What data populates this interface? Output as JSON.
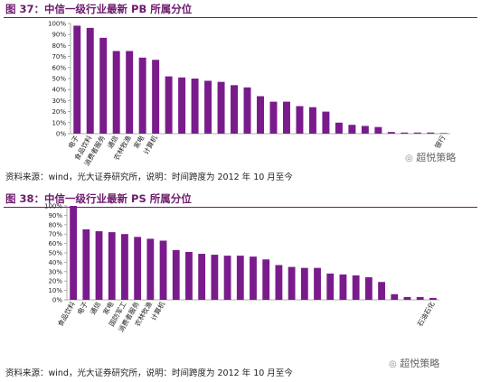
{
  "figures": [
    {
      "title": "图 37：中信一级行业最新 PB 所属分位",
      "source": "资料来源：wind，光大证券研究所，说明：时间跨度为 2012 年 10 月至今",
      "watermark": "超悦策略"
    },
    {
      "title": "图 38：中信一级行业最新 PS 所属分位",
      "source": "资料来源：wind，光大证券研究所，说明：时间跨度为 2012 年 10 月至今",
      "watermark": "超悦策略"
    }
  ],
  "colors": {
    "bar": "#7a1b8c",
    "accent": "#6e1b6e",
    "axis": "#999999"
  },
  "chart_data": [
    {
      "type": "bar",
      "title": "",
      "xlabel": "",
      "ylabel": "",
      "ylim": [
        0,
        100
      ],
      "yticks": [
        "0%",
        "10%",
        "20%",
        "30%",
        "40%",
        "50%",
        "60%",
        "70%",
        "80%",
        "90%",
        "100%"
      ],
      "categories": [
        "电子",
        "食品饮料",
        "消费者服务",
        "通信",
        "农林牧渔",
        "家电",
        "计算机",
        "",
        "",
        "",
        "",
        "",
        "",
        "",
        "",
        "",
        "",
        "",
        "",
        "",
        "",
        "",
        "",
        "",
        "",
        "",
        "",
        "",
        "银行"
      ],
      "values": [
        98,
        96,
        87,
        75,
        75,
        69,
        67,
        52,
        51,
        50,
        48,
        47,
        44,
        42,
        34,
        29,
        29,
        25,
        24,
        20,
        10,
        8,
        7,
        6,
        1.5,
        1,
        1,
        1,
        0.5
      ],
      "grid": false
    },
    {
      "type": "bar",
      "title": "",
      "xlabel": "",
      "ylabel": "",
      "ylim": [
        0,
        100
      ],
      "yticks": [
        "0%",
        "10%",
        "20%",
        "30%",
        "40%",
        "50%",
        "60%",
        "70%",
        "80%",
        "90%",
        "100%"
      ],
      "categories": [
        "食品饮料",
        "电子",
        "通信",
        "家电",
        "国防军工",
        "消费者服务",
        "农林牧渔",
        "计算机",
        "",
        "",
        "",
        "",
        "",
        "",
        "",
        "",
        "",
        "",
        "",
        "",
        "",
        "",
        "",
        "",
        "",
        "",
        "",
        "",
        "石油石化"
      ],
      "values": [
        100,
        75,
        73,
        72,
        70,
        67,
        65,
        63,
        53,
        51,
        49,
        48,
        47,
        47,
        46,
        43,
        37,
        35,
        34,
        34,
        28,
        27,
        26,
        24,
        19,
        6,
        3,
        3,
        2
      ],
      "grid": false
    }
  ]
}
